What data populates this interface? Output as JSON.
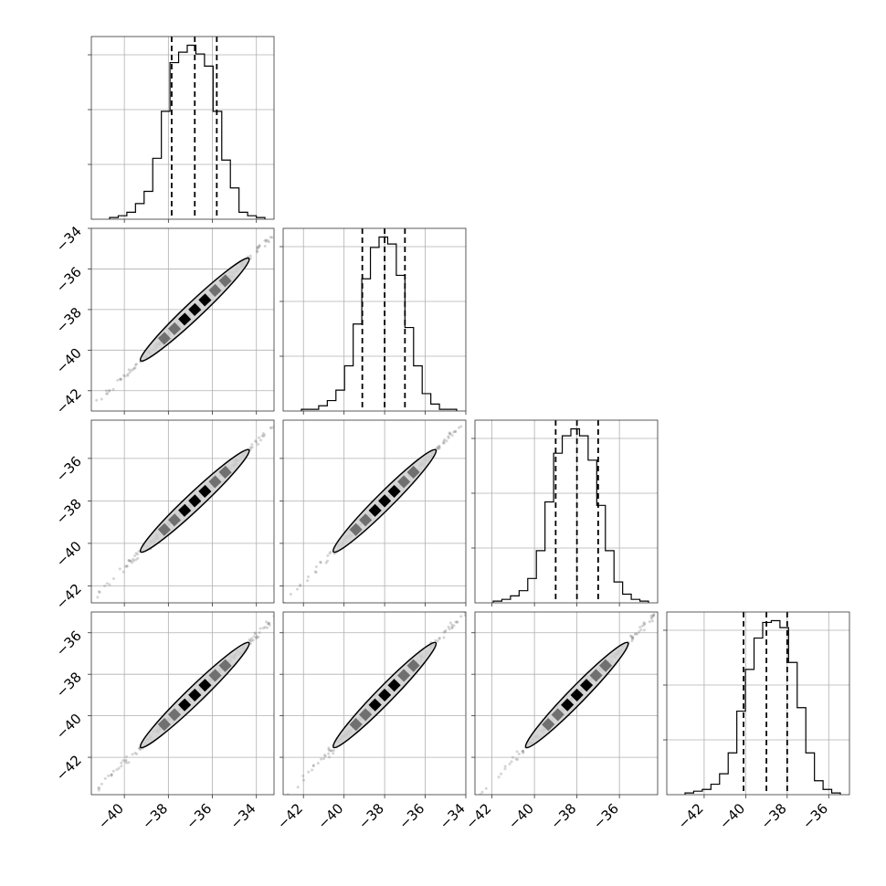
{
  "chart_data": {
    "type": "corner",
    "n_params": 4,
    "grid": true,
    "parameters": [
      {
        "range": [
          -41.5,
          -33.2
        ],
        "median": -36.8,
        "q16": -37.85,
        "q84": -35.8,
        "x_ticks": [
          -40,
          -38,
          -36,
          -34
        ],
        "x_tick_labels": [
          "−40",
          "−38",
          "−36",
          "−34"
        ]
      },
      {
        "range": [
          -43.0,
          -34.0
        ],
        "median": -38.0,
        "q16": -39.1,
        "q84": -37.0,
        "x_ticks": [
          -42,
          -40,
          -38,
          -36,
          -34
        ],
        "x_tick_labels": [
          "−42",
          "−40",
          "−38",
          "−36",
          "−34"
        ],
        "y_ticks": [
          -42,
          -40,
          -38,
          -36,
          -34
        ],
        "y_tick_labels": [
          "−42",
          "−40",
          "−38",
          "−36",
          "−34"
        ]
      },
      {
        "range": [
          -42.8,
          -34.2
        ],
        "median": -38.0,
        "q16": -39.0,
        "q84": -37.0,
        "x_ticks": [
          -42,
          -40,
          -38,
          -36
        ],
        "x_tick_labels": [
          "−42",
          "−40",
          "−38",
          "−36"
        ],
        "y_ticks": [
          -42,
          -40,
          -38,
          -36
        ],
        "y_tick_labels": [
          "−42",
          "−40",
          "−38",
          "−36"
        ]
      },
      {
        "range": [
          -43.8,
          -35.0
        ],
        "median": -39.0,
        "q16": -40.1,
        "q84": -38.0,
        "x_ticks": [
          -42,
          -40,
          -38,
          -36
        ],
        "x_tick_labels": [
          "−42",
          "−40",
          "−38",
          "−36"
        ],
        "y_ticks": [
          -42,
          -40,
          -38,
          -36
        ],
        "y_tick_labels": [
          "−42",
          "−40",
          "−38",
          "−36"
        ]
      }
    ],
    "histograms": [
      [
        1,
        2,
        4,
        9,
        16,
        35,
        62,
        90,
        96,
        100,
        95,
        88,
        62,
        34,
        18,
        4,
        2,
        1
      ],
      [
        1,
        1,
        3,
        6,
        12,
        26,
        50,
        76,
        94,
        100,
        96,
        78,
        48,
        26,
        10,
        4,
        1,
        1
      ],
      [
        1,
        2,
        4,
        7,
        14,
        30,
        58,
        86,
        96,
        100,
        96,
        82,
        56,
        30,
        12,
        5,
        2,
        1
      ],
      [
        1,
        2,
        3,
        6,
        12,
        24,
        48,
        72,
        90,
        99,
        100,
        96,
        76,
        50,
        24,
        8,
        3,
        1
      ]
    ]
  }
}
